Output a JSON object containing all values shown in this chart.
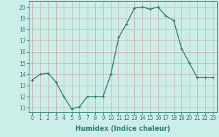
{
  "x": [
    0,
    1,
    2,
    3,
    4,
    5,
    6,
    7,
    8,
    9,
    10,
    11,
    12,
    13,
    14,
    15,
    16,
    17,
    18,
    19,
    20,
    21,
    22,
    23
  ],
  "y": [
    13.5,
    14.0,
    14.1,
    13.3,
    12.0,
    10.9,
    11.1,
    12.0,
    12.0,
    12.0,
    14.0,
    17.3,
    18.5,
    19.9,
    20.0,
    19.8,
    20.0,
    19.2,
    18.8,
    16.3,
    15.0,
    13.7,
    13.7,
    13.7
  ],
  "line_color": "#2e7d6e",
  "marker": "+",
  "marker_size": 3,
  "line_width": 1.0,
  "xlabel": "Humidex (Indice chaleur)",
  "xlabel_fontsize": 7,
  "xlabel_fontweight": "bold",
  "xlim": [
    -0.5,
    23.5
  ],
  "ylim": [
    10.6,
    20.5
  ],
  "yticks": [
    11,
    12,
    13,
    14,
    15,
    16,
    17,
    18,
    19,
    20
  ],
  "xticks": [
    0,
    1,
    2,
    3,
    4,
    5,
    6,
    7,
    8,
    9,
    10,
    11,
    12,
    13,
    14,
    15,
    16,
    17,
    18,
    19,
    20,
    21,
    22,
    23
  ],
  "tick_fontsize": 5.5,
  "grid_color": "#c8a8a8",
  "bg_color": "#cceee8",
  "fig_bg_color": "#cceee8"
}
